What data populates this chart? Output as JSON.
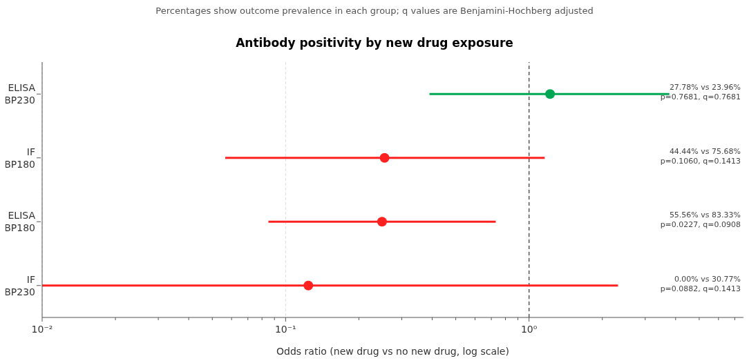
{
  "chart_data": {
    "type": "scatter",
    "orientation": "horizontal",
    "title": "Antibody positivity by new drug exposure",
    "subtitle": "Percentages show outcome prevalence in each group; q values are Benjamini-Hochberg adjusted",
    "xlabel": "Odds ratio (new drug vs no new drug, log scale)",
    "categories": [
      "ELISA\nBP230",
      "IF\nBP180",
      "ELISA\nBP180",
      "IF\nBP230"
    ],
    "values": [
      1.22,
      0.255,
      0.249,
      0.124
    ],
    "errors": [
      [
        0.39,
        3.77
      ],
      [
        0.0565,
        1.16
      ],
      [
        0.085,
        0.73
      ],
      [
        0.01,
        2.32
      ]
    ],
    "colors": [
      "#00a651",
      "#ff2020",
      "#ff2020",
      "#ff2020"
    ],
    "log": "x",
    "xlim": [
      0.01,
      7.6
    ],
    "xticks": [
      {
        "value": 0.01,
        "label": "10⁻²"
      },
      {
        "value": 0.02,
        "label": null
      },
      {
        "value": 0.03,
        "label": null
      },
      {
        "value": 0.04,
        "label": null
      },
      {
        "value": 0.05,
        "label": null
      },
      {
        "value": 0.06,
        "label": null
      },
      {
        "value": 0.07,
        "label": null
      },
      {
        "value": 0.08,
        "label": null
      },
      {
        "value": 0.09,
        "label": null
      },
      {
        "value": 0.1,
        "label": "10⁻¹"
      },
      {
        "value": 0.2,
        "label": null
      },
      {
        "value": 0.3,
        "label": null
      },
      {
        "value": 0.4,
        "label": null
      },
      {
        "value": 0.5,
        "label": null
      },
      {
        "value": 0.6,
        "label": null
      },
      {
        "value": 0.7,
        "label": null
      },
      {
        "value": 0.8,
        "label": null
      },
      {
        "value": 0.9,
        "label": null
      },
      {
        "value": 1,
        "label": "10⁰"
      },
      {
        "value": 2,
        "label": null
      },
      {
        "value": 3,
        "label": null
      },
      {
        "value": 4,
        "label": null
      },
      {
        "value": 5,
        "label": null
      },
      {
        "value": 6,
        "label": null
      },
      {
        "value": 7,
        "label": null
      }
    ],
    "grid": "x",
    "marker": "circle",
    "ref_lines": [
      {
        "axis": "x",
        "value": 1,
        "label": null,
        "color": "#555555",
        "line_style": "dashed"
      }
    ],
    "annotations": [
      "27.78% vs 23.96%\np=0.7681, q=0.7681",
      "44.44% vs 75.68%\np=0.1060, q=0.1413",
      "55.56% vs 83.33%\np=0.0227, q=0.0908",
      "0.00% vs 30.77%\np=0.0882, q=0.1413"
    ]
  }
}
